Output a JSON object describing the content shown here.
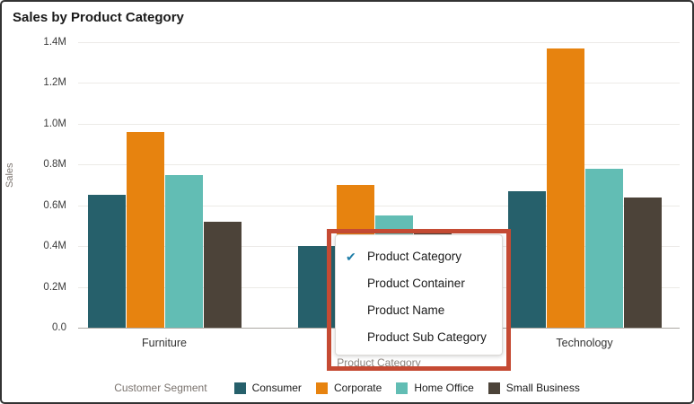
{
  "title": "Sales by Product Category",
  "y_axis": {
    "label": "Sales",
    "ticks": [
      "1.4M",
      "1.2M",
      "1.0M",
      "0.8M",
      "0.6M",
      "0.4M",
      "0.2M",
      "0.0"
    ]
  },
  "x_axis": {
    "title": "Product Category",
    "categories": [
      "Furniture",
      "",
      "Technology"
    ]
  },
  "legend": {
    "title": "Customer Segment",
    "items": [
      {
        "label": "Consumer",
        "color": "#26606b"
      },
      {
        "label": "Corporate",
        "color": "#e7830f"
      },
      {
        "label": "Home Office",
        "color": "#62bdb4"
      },
      {
        "label": "Small Business",
        "color": "#4c4339"
      }
    ]
  },
  "dropdown": {
    "highlight_color": "#c54a33",
    "check_color": "#1f7ea8",
    "check_glyph": "✔",
    "items": [
      {
        "label": "Product Category",
        "selected": true
      },
      {
        "label": "Product Container",
        "selected": false
      },
      {
        "label": "Product Name",
        "selected": false
      },
      {
        "label": "Product Sub Category",
        "selected": false
      }
    ]
  },
  "chart_data": {
    "type": "bar",
    "title": "Sales by Product Category",
    "xlabel": "Product Category",
    "ylabel": "Sales",
    "y_unit": "M",
    "ylim": [
      0,
      1.4
    ],
    "grid": "horizontal",
    "legend_position": "bottom",
    "categories": [
      "Furniture",
      "",
      "Technology"
    ],
    "category_note": "middle category label hidden behind open menu",
    "series": [
      {
        "name": "Consumer",
        "color": "#26606b",
        "values": [
          0.65,
          0.4,
          0.67
        ]
      },
      {
        "name": "Corporate",
        "color": "#e7830f",
        "values": [
          0.96,
          0.7,
          1.37
        ]
      },
      {
        "name": "Home Office",
        "color": "#62bdb4",
        "values": [
          0.75,
          0.55,
          0.78
        ]
      },
      {
        "name": "Small Business",
        "color": "#4c4339",
        "values": [
          0.52,
          0.47,
          0.64
        ]
      }
    ]
  }
}
